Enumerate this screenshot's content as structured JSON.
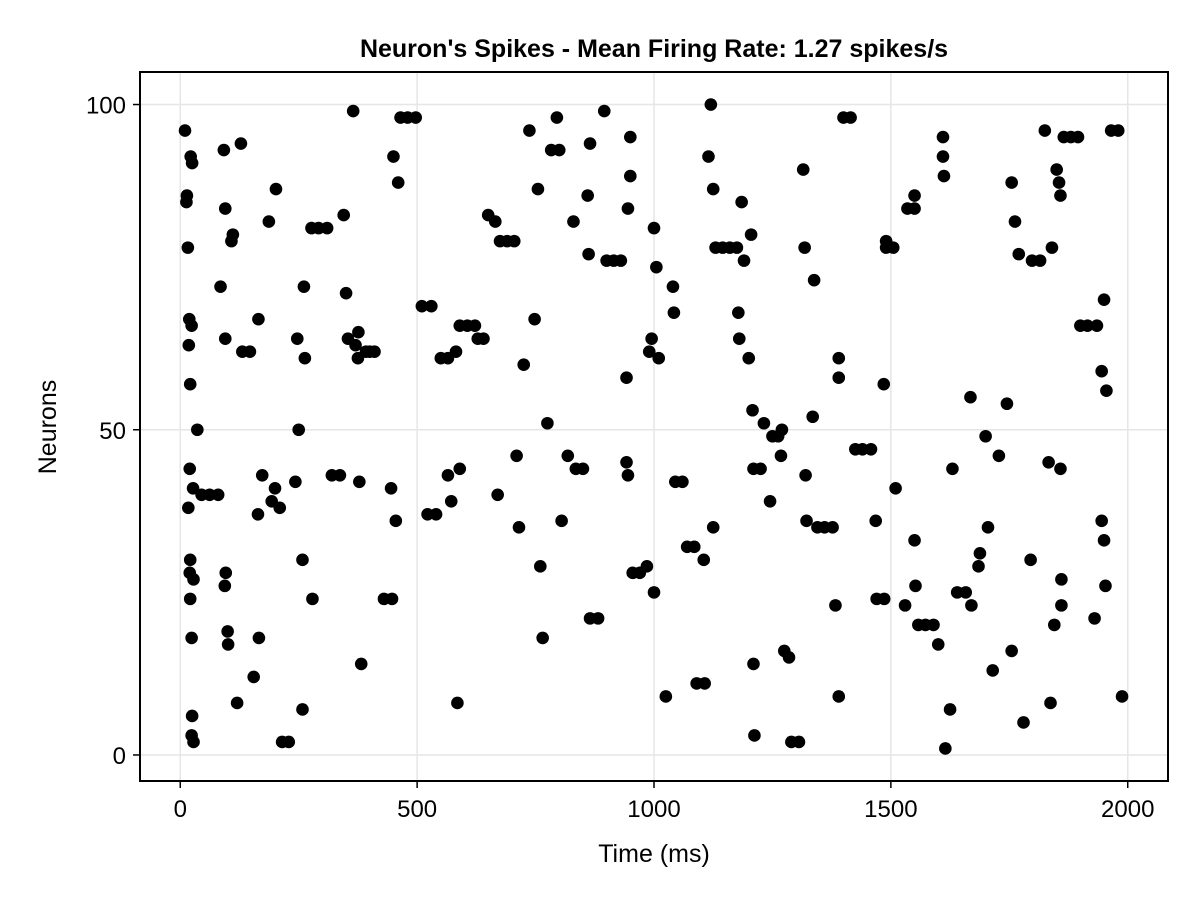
{
  "chart_data": {
    "type": "scatter",
    "title": "Neuron's Spikes - Mean Firing Rate: 1.27 spikes/s",
    "xlabel": "Time (ms)",
    "ylabel": "Neurons",
    "xlim": [
      -85,
      2085
    ],
    "ylim": [
      -4,
      105
    ],
    "xticks": [
      0,
      500,
      1000,
      1500,
      2000
    ],
    "yticks": [
      0,
      50,
      100
    ],
    "grid": true,
    "marker_color": "#000000",
    "points": [
      [
        10,
        96
      ],
      [
        13,
        85
      ],
      [
        14,
        86
      ],
      [
        16,
        78
      ],
      [
        18,
        63
      ],
      [
        19,
        67
      ],
      [
        20,
        44
      ],
      [
        21,
        57
      ],
      [
        22,
        92
      ],
      [
        24,
        66
      ],
      [
        25,
        91
      ],
      [
        17,
        38
      ],
      [
        20,
        28
      ],
      [
        21,
        30
      ],
      [
        21,
        24
      ],
      [
        24,
        18
      ],
      [
        25,
        6
      ],
      [
        24,
        3
      ],
      [
        28,
        2
      ],
      [
        28,
        27
      ],
      [
        27,
        41
      ],
      [
        36,
        50
      ],
      [
        45,
        40
      ],
      [
        62,
        40
      ],
      [
        80,
        40
      ],
      [
        85,
        72
      ],
      [
        92,
        93
      ],
      [
        95,
        84
      ],
      [
        95,
        64
      ],
      [
        94,
        26
      ],
      [
        96,
        28
      ],
      [
        100,
        19
      ],
      [
        101,
        17
      ],
      [
        108,
        79
      ],
      [
        111,
        80
      ],
      [
        120,
        8
      ],
      [
        128,
        94
      ],
      [
        131,
        62
      ],
      [
        147,
        62
      ],
      [
        155,
        12
      ],
      [
        164,
        37
      ],
      [
        165,
        67
      ],
      [
        166,
        18
      ],
      [
        173,
        43
      ],
      [
        187,
        82
      ],
      [
        193,
        39
      ],
      [
        200,
        41
      ],
      [
        202,
        87
      ],
      [
        210,
        38
      ],
      [
        215,
        2
      ],
      [
        229,
        2
      ],
      [
        243,
        42
      ],
      [
        247,
        64
      ],
      [
        250,
        50
      ],
      [
        258,
        30
      ],
      [
        258,
        7
      ],
      [
        261,
        72
      ],
      [
        263,
        61
      ],
      [
        279,
        24
      ],
      [
        277,
        81
      ],
      [
        292,
        81
      ],
      [
        310,
        81
      ],
      [
        320,
        43
      ],
      [
        337,
        43
      ],
      [
        345,
        83
      ],
      [
        350,
        71
      ],
      [
        354,
        64
      ],
      [
        365,
        99
      ],
      [
        370,
        63
      ],
      [
        375,
        61
      ],
      [
        376,
        65
      ],
      [
        378,
        42
      ],
      [
        382,
        14
      ],
      [
        392,
        62
      ],
      [
        400,
        62
      ],
      [
        410,
        62
      ],
      [
        430,
        24
      ],
      [
        445,
        41
      ],
      [
        447,
        24
      ],
      [
        450,
        92
      ],
      [
        455,
        36
      ],
      [
        460,
        88
      ],
      [
        465,
        98
      ],
      [
        480,
        98
      ],
      [
        497,
        98
      ],
      [
        510,
        69
      ],
      [
        522,
        37
      ],
      [
        530,
        69
      ],
      [
        540,
        37
      ],
      [
        550,
        61
      ],
      [
        565,
        61
      ],
      [
        565,
        43
      ],
      [
        572,
        39
      ],
      [
        582,
        62
      ],
      [
        585,
        8
      ],
      [
        590,
        44
      ],
      [
        590,
        66
      ],
      [
        606,
        66
      ],
      [
        622,
        66
      ],
      [
        628,
        64
      ],
      [
        640,
        64
      ],
      [
        650,
        83
      ],
      [
        665,
        82
      ],
      [
        670,
        40
      ],
      [
        675,
        79
      ],
      [
        690,
        79
      ],
      [
        705,
        79
      ],
      [
        710,
        46
      ],
      [
        715,
        35
      ],
      [
        725,
        60
      ],
      [
        737,
        96
      ],
      [
        748,
        67
      ],
      [
        755,
        87
      ],
      [
        760,
        29
      ],
      [
        765,
        18
      ],
      [
        775,
        51
      ],
      [
        783,
        93
      ],
      [
        795,
        98
      ],
      [
        800,
        93
      ],
      [
        805,
        36
      ],
      [
        818,
        46
      ],
      [
        830,
        82
      ],
      [
        835,
        44
      ],
      [
        850,
        44
      ],
      [
        860,
        86
      ],
      [
        862,
        77
      ],
      [
        865,
        94
      ],
      [
        865,
        21
      ],
      [
        882,
        21
      ],
      [
        895,
        99
      ],
      [
        900,
        76
      ],
      [
        915,
        76
      ],
      [
        930,
        76
      ],
      [
        942,
        45
      ],
      [
        942,
        58
      ],
      [
        945,
        84
      ],
      [
        945,
        43
      ],
      [
        950,
        89
      ],
      [
        950,
        95
      ],
      [
        955,
        28
      ],
      [
        970,
        28
      ],
      [
        985,
        29
      ],
      [
        990,
        62
      ],
      [
        995,
        64
      ],
      [
        1000,
        81
      ],
      [
        1000,
        25
      ],
      [
        1005,
        75
      ],
      [
        1010,
        61
      ],
      [
        1025,
        9
      ],
      [
        1040,
        72
      ],
      [
        1042,
        68
      ],
      [
        1045,
        42
      ],
      [
        1060,
        42
      ],
      [
        1070,
        32
      ],
      [
        1085,
        32
      ],
      [
        1090,
        11
      ],
      [
        1107,
        11
      ],
      [
        1105,
        30
      ],
      [
        1115,
        92
      ],
      [
        1120,
        100
      ],
      [
        1125,
        87
      ],
      [
        1125,
        35
      ],
      [
        1130,
        78
      ],
      [
        1145,
        78
      ],
      [
        1160,
        78
      ],
      [
        1175,
        78
      ],
      [
        1178,
        68
      ],
      [
        1180,
        64
      ],
      [
        1185,
        85
      ],
      [
        1190,
        76
      ],
      [
        1200,
        61
      ],
      [
        1205,
        80
      ],
      [
        1208,
        53
      ],
      [
        1210,
        44
      ],
      [
        1210,
        14
      ],
      [
        1212,
        3
      ],
      [
        1225,
        44
      ],
      [
        1232,
        51
      ],
      [
        1245,
        39
      ],
      [
        1250,
        49
      ],
      [
        1262,
        49
      ],
      [
        1268,
        46
      ],
      [
        1270,
        50
      ],
      [
        1275,
        16
      ],
      [
        1285,
        15
      ],
      [
        1290,
        2
      ],
      [
        1306,
        2
      ],
      [
        1315,
        90
      ],
      [
        1318,
        78
      ],
      [
        1320,
        43
      ],
      [
        1322,
        36
      ],
      [
        1335,
        52
      ],
      [
        1338,
        73
      ],
      [
        1345,
        35
      ],
      [
        1360,
        35
      ],
      [
        1377,
        35
      ],
      [
        1383,
        23
      ],
      [
        1390,
        61
      ],
      [
        1390,
        58
      ],
      [
        1390,
        9
      ],
      [
        1400,
        98
      ],
      [
        1415,
        98
      ],
      [
        1425,
        47
      ],
      [
        1440,
        47
      ],
      [
        1458,
        47
      ],
      [
        1468,
        36
      ],
      [
        1470,
        24
      ],
      [
        1485,
        57
      ],
      [
        1486,
        24
      ],
      [
        1490,
        79
      ],
      [
        1490,
        78
      ],
      [
        1505,
        78
      ],
      [
        1510,
        41
      ],
      [
        1530,
        23
      ],
      [
        1535,
        84
      ],
      [
        1550,
        84
      ],
      [
        1550,
        86
      ],
      [
        1552,
        26
      ],
      [
        1550,
        33
      ],
      [
        1558,
        20
      ],
      [
        1573,
        20
      ],
      [
        1590,
        20
      ],
      [
        1600,
        17
      ],
      [
        1610,
        95
      ],
      [
        1610,
        92
      ],
      [
        1612,
        89
      ],
      [
        1615,
        1
      ],
      [
        1625,
        7
      ],
      [
        1630,
        44
      ],
      [
        1640,
        25
      ],
      [
        1658,
        25
      ],
      [
        1668,
        55
      ],
      [
        1670,
        23
      ],
      [
        1685,
        29
      ],
      [
        1688,
        31
      ],
      [
        1700,
        49
      ],
      [
        1705,
        35
      ],
      [
        1715,
        13
      ],
      [
        1728,
        46
      ],
      [
        1745,
        54
      ],
      [
        1755,
        88
      ],
      [
        1755,
        16
      ],
      [
        1762,
        82
      ],
      [
        1770,
        77
      ],
      [
        1780,
        5
      ],
      [
        1795,
        30
      ],
      [
        1798,
        76
      ],
      [
        1815,
        76
      ],
      [
        1825,
        96
      ],
      [
        1833,
        45
      ],
      [
        1837,
        8
      ],
      [
        1840,
        78
      ],
      [
        1845,
        20
      ],
      [
        1850,
        90
      ],
      [
        1855,
        88
      ],
      [
        1858,
        86
      ],
      [
        1858,
        44
      ],
      [
        1860,
        23
      ],
      [
        1860,
        27
      ],
      [
        1865,
        95
      ],
      [
        1880,
        95
      ],
      [
        1895,
        95
      ],
      [
        1900,
        66
      ],
      [
        1915,
        66
      ],
      [
        1930,
        21
      ],
      [
        1935,
        66
      ],
      [
        1945,
        59
      ],
      [
        1945,
        36
      ],
      [
        1950,
        70
      ],
      [
        1950,
        33
      ],
      [
        1953,
        26
      ],
      [
        1955,
        56
      ],
      [
        1965,
        96
      ],
      [
        1980,
        96
      ],
      [
        1988,
        9
      ]
    ]
  }
}
